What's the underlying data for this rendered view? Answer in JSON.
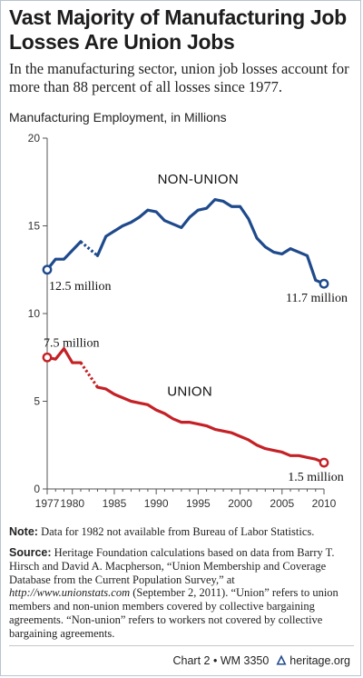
{
  "title": "Vast Majority of Manufacturing Job Losses Are Union Jobs",
  "subtitle": "In the manufacturing sector, union job losses account for more than 88 percent of all losses since 1977.",
  "chart_data": {
    "type": "line",
    "title": "Manufacturing Employment, in Millions",
    "xlabel": "",
    "ylabel": "",
    "xlim": [
      1977,
      2010
    ],
    "ylim": [
      0,
      20
    ],
    "x_ticks": [
      1977,
      1980,
      1985,
      1990,
      1995,
      2000,
      2005,
      2010
    ],
    "y_ticks": [
      0,
      5,
      10,
      15,
      20
    ],
    "grid": false,
    "legend": "none",
    "series": [
      {
        "name": "NON-UNION",
        "color": "#1e4a8c",
        "x": [
          1977,
          1978,
          1979,
          1980,
          1981,
          1983,
          1984,
          1985,
          1986,
          1987,
          1988,
          1989,
          1990,
          1991,
          1992,
          1993,
          1994,
          1995,
          1996,
          1997,
          1998,
          1999,
          2000,
          2001,
          2002,
          2003,
          2004,
          2005,
          2006,
          2007,
          2008,
          2009,
          2010
        ],
        "y": [
          12.5,
          13.1,
          13.1,
          13.6,
          14.1,
          13.3,
          14.4,
          14.7,
          15.0,
          15.2,
          15.5,
          15.9,
          15.8,
          15.3,
          15.1,
          14.9,
          15.5,
          15.9,
          16.0,
          16.5,
          16.4,
          16.1,
          16.1,
          15.4,
          14.3,
          13.8,
          13.5,
          13.4,
          13.7,
          13.5,
          13.3,
          11.9,
          11.7
        ],
        "gap_between": [
          1981,
          1983
        ]
      },
      {
        "name": "UNION",
        "color": "#c42126",
        "x": [
          1977,
          1978,
          1979,
          1980,
          1981,
          1983,
          1984,
          1985,
          1986,
          1987,
          1988,
          1989,
          1990,
          1991,
          1992,
          1993,
          1994,
          1995,
          1996,
          1997,
          1998,
          1999,
          2000,
          2001,
          2002,
          2003,
          2004,
          2005,
          2006,
          2007,
          2008,
          2009,
          2010
        ],
        "y": [
          7.5,
          7.4,
          8.0,
          7.2,
          7.2,
          5.8,
          5.7,
          5.4,
          5.2,
          5.0,
          4.9,
          4.8,
          4.5,
          4.3,
          4.0,
          3.8,
          3.8,
          3.7,
          3.6,
          3.4,
          3.3,
          3.2,
          3.0,
          2.8,
          2.5,
          2.3,
          2.2,
          2.1,
          1.9,
          1.9,
          1.8,
          1.7,
          1.5
        ],
        "gap_between": [
          1981,
          1983
        ]
      }
    ],
    "annotations": [
      {
        "text": "12.5 million",
        "series": "NON-UNION",
        "x": 1977,
        "y": 12.5
      },
      {
        "text": "11.7 million",
        "series": "NON-UNION",
        "x": 2010,
        "y": 11.7
      },
      {
        "text": "7.5 million",
        "series": "UNION",
        "x": 1977,
        "y": 7.5
      },
      {
        "text": "1.5 million",
        "series": "UNION",
        "x": 2010,
        "y": 1.5
      }
    ]
  },
  "note": {
    "label": "Note:",
    "text": " Data for 1982 not available from Bureau of Labor Statistics."
  },
  "source": {
    "label": "Source:",
    "text1": " Heritage Foundation calculations based on data from Barry T. Hirsch and David A. Macpherson, “Union Membership and Coverage Database from the Current Population Survey,” at ",
    "url": "http://www.unionstats.com",
    "text2": " (September 2, 2011). “Union” refers to union members and non-union members covered by collective bargaining agreements. “Non-union” refers to workers not covered by collective bargaining agreements."
  },
  "footer": {
    "chart_label": "Chart 2 • WM 3350",
    "site": "heritage.org",
    "icon": "heritage-logo-icon"
  }
}
